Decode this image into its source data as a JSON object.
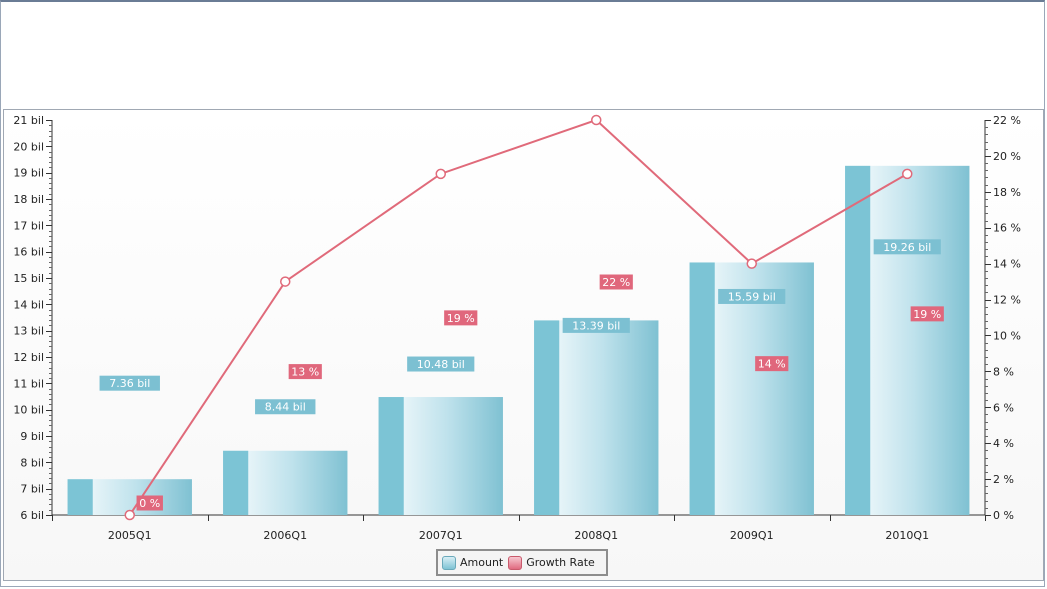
{
  "chart_data": {
    "type": "bar",
    "categories": [
      "2005Q1",
      "2006Q1",
      "2007Q1",
      "2008Q1",
      "2009Q1",
      "2010Q1"
    ],
    "series": [
      {
        "name": "Amount",
        "type": "bar",
        "axis": "left",
        "values": [
          7.36,
          8.44,
          10.48,
          13.39,
          15.59,
          19.26
        ],
        "labels": [
          "7.36 bil",
          "8.44 bil",
          "10.48 bil",
          "13.39 bil",
          "15.59 bil",
          "19.26 bil"
        ],
        "color": "#7ec3d4"
      },
      {
        "name": "Growth Rate",
        "type": "line",
        "axis": "right",
        "values": [
          0,
          13,
          19,
          22,
          14,
          19
        ],
        "labels": [
          "0 %",
          "13 %",
          "19 %",
          "22 %",
          "14 %",
          "19 %"
        ],
        "color": "#e06a7a"
      }
    ],
    "y_left": {
      "ylim": [
        6,
        21
      ],
      "ticks": [
        "6 bil",
        "7 bil",
        "8 bil",
        "9 bil",
        "10 bil",
        "11 bil",
        "12 bil",
        "13 bil",
        "14 bil",
        "15 bil",
        "16 bil",
        "17 bil",
        "18 bil",
        "19 bil",
        "20 bil",
        "21 bil"
      ]
    },
    "y_right": {
      "ylim": [
        0,
        22
      ],
      "ticks": [
        "0 %",
        "2 %",
        "4 %",
        "6 %",
        "8 %",
        "10 %",
        "12 %",
        "14 %",
        "16 %",
        "18 %",
        "20 %",
        "22 %"
      ]
    },
    "legend": {
      "position": "bottom-center",
      "items": [
        "Amount",
        "Growth Rate"
      ]
    },
    "grid": false
  }
}
